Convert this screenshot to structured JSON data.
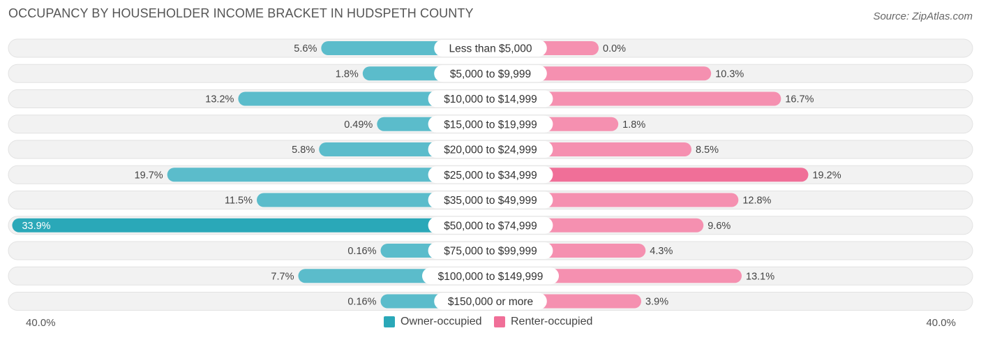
{
  "header": {
    "title": "OCCUPANCY BY HOUSEHOLDER INCOME BRACKET IN HUDSPETH COUNTY",
    "source": "Source: ZipAtlas.com"
  },
  "colors": {
    "owner": "#5bbccb",
    "owner_dark": "#2aa8b8",
    "renter": "#f590b0",
    "renter_dark": "#f06f98",
    "label_bg": "#ffffff",
    "track": "#f2f2f2"
  },
  "chart_data": {
    "type": "bar",
    "orientation": "horizontal-diverging",
    "title": "OCCUPANCY BY HOUSEHOLDER INCOME BRACKET IN HUDSPETH COUNTY",
    "categories": [
      "Less than $5,000",
      "$5,000 to $9,999",
      "$10,000 to $14,999",
      "$15,000 to $19,999",
      "$20,000 to $24,999",
      "$25,000 to $34,999",
      "$35,000 to $49,999",
      "$50,000 to $74,999",
      "$75,000 to $99,999",
      "$100,000 to $149,999",
      "$150,000 or more"
    ],
    "series": [
      {
        "name": "Owner-occupied",
        "values": [
          5.6,
          1.8,
          13.2,
          0.49,
          5.8,
          19.7,
          11.5,
          33.9,
          0.16,
          7.7,
          0.16
        ],
        "labels": [
          "5.6%",
          "1.8%",
          "13.2%",
          "0.49%",
          "5.8%",
          "19.7%",
          "11.5%",
          "33.9%",
          "0.16%",
          "7.7%",
          "0.16%"
        ]
      },
      {
        "name": "Renter-occupied",
        "values": [
          0.0,
          10.3,
          16.7,
          1.8,
          8.5,
          19.2,
          12.8,
          9.6,
          4.3,
          13.1,
          3.9
        ],
        "labels": [
          "0.0%",
          "10.3%",
          "16.7%",
          "1.8%",
          "8.5%",
          "19.2%",
          "12.8%",
          "9.6%",
          "4.3%",
          "13.1%",
          "3.9%"
        ]
      }
    ],
    "xlim": [
      -40,
      40
    ],
    "axis_left_label": "40.0%",
    "axis_right_label": "40.0%",
    "legend": [
      "Owner-occupied",
      "Renter-occupied"
    ],
    "legend_position": "bottom-center"
  }
}
